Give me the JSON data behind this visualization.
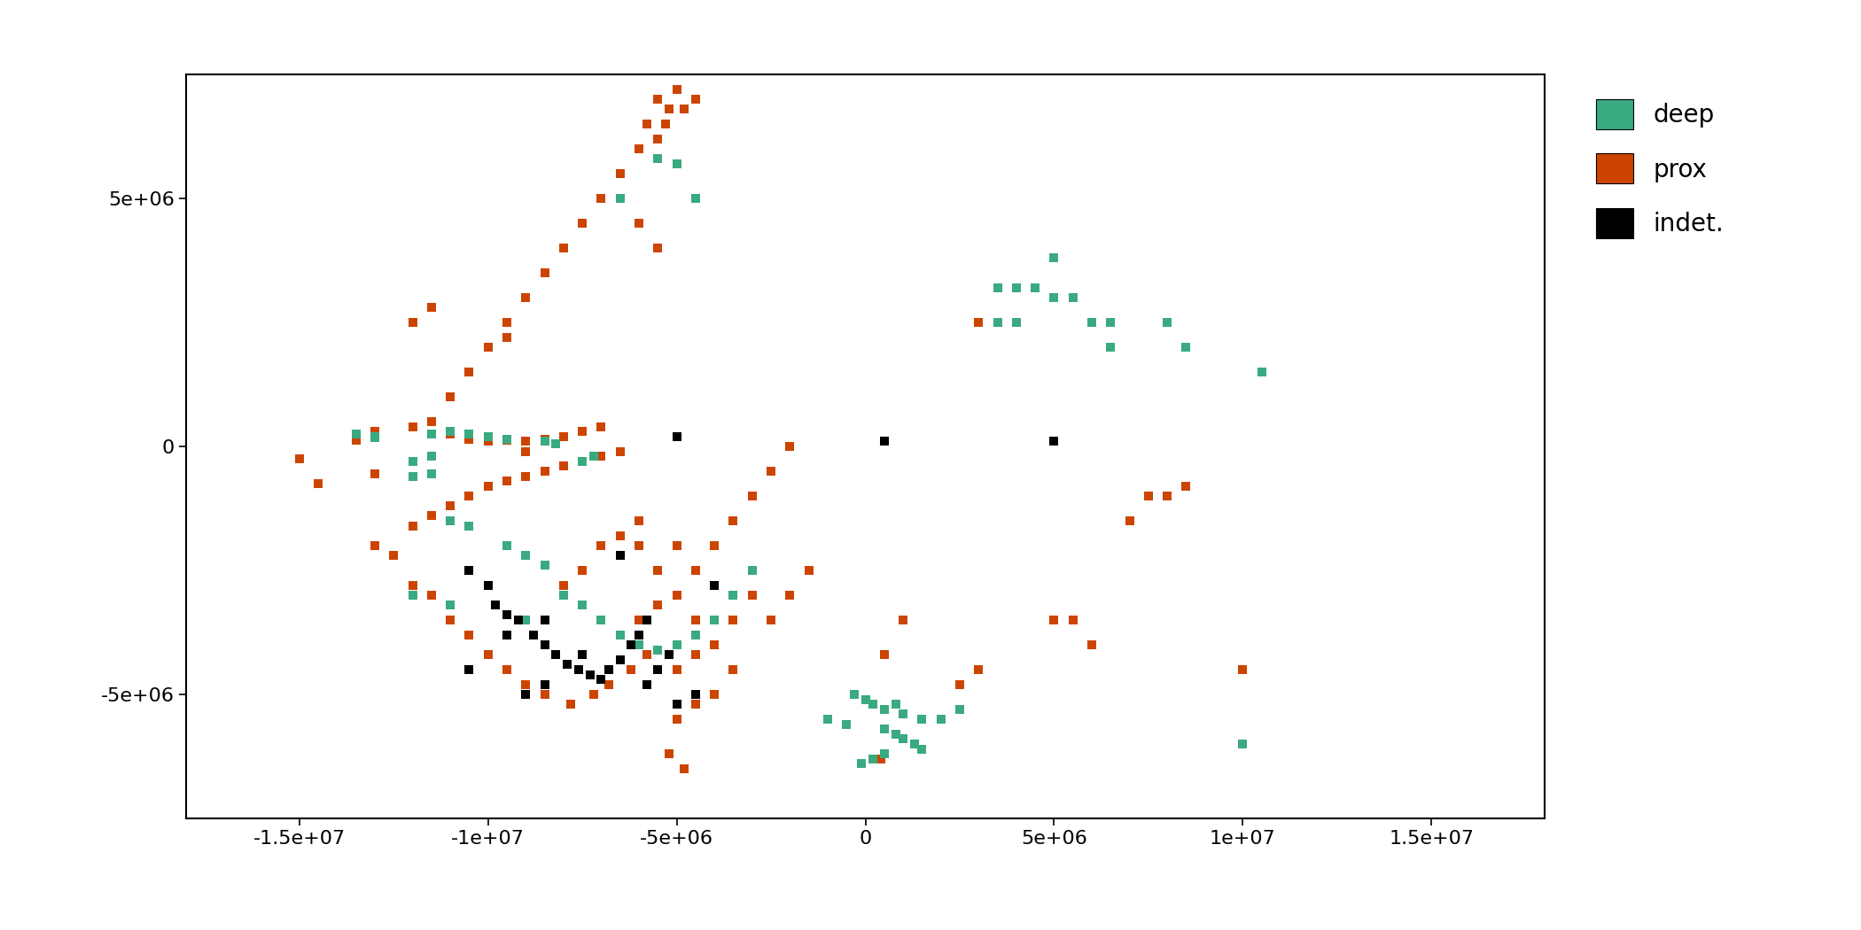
{
  "deep_color": "#3aaa80",
  "prox_color": "#cc4500",
  "indet_color": "#000000",
  "xlim": [
    -18000000.0,
    18000000.0
  ],
  "ylim": [
    -7500000.0,
    7500000.0
  ],
  "xticks": [
    -15000000.0,
    -10000000.0,
    -5000000.0,
    0,
    5000000.0,
    10000000.0,
    15000000.0
  ],
  "yticks": [
    -5000000.0,
    0,
    5000000.0
  ],
  "xlabels": [
    "-1.5e+07",
    "-1e+07",
    "-5e+06",
    "0",
    "5e+06",
    "1e+07",
    "1.5e+07"
  ],
  "ylabels": [
    "-5e+06",
    "0",
    "5e+06"
  ],
  "marker_size": 55,
  "marker": "s",
  "legend_labels": [
    "deep",
    "prox",
    "indet."
  ],
  "legend_colors": [
    "#3aaa80",
    "#cc4500",
    "#000000"
  ],
  "background": "#ffffff",
  "deep_points": [
    [
      -13500000.0,
      250000.0
    ],
    [
      -13000000.0,
      200000.0
    ],
    [
      -11500000.0,
      250000.0
    ],
    [
      -11000000.0,
      300000.0
    ],
    [
      -10500000.0,
      250000.0
    ],
    [
      -10000000.0,
      200000.0
    ],
    [
      -9500000.0,
      150000.0
    ],
    [
      -8500000.0,
      100000.0
    ],
    [
      -8200000.0,
      50000.0
    ],
    [
      -11500000.0,
      -200000.0
    ],
    [
      -12000000.0,
      -300000.0
    ],
    [
      -7200000.0,
      -200000.0
    ],
    [
      -7500000.0,
      -300000.0
    ],
    [
      -11000000.0,
      -1500000.0
    ],
    [
      -10500000.0,
      -1600000.0
    ],
    [
      -9500000.0,
      -2000000.0
    ],
    [
      -9000000.0,
      -2200000.0
    ],
    [
      -8500000.0,
      -2400000.0
    ],
    [
      -8000000.0,
      -3000000.0
    ],
    [
      -7500000.0,
      -3200000.0
    ],
    [
      -7000000.0,
      -3500000.0
    ],
    [
      -6500000.0,
      -3800000.0
    ],
    [
      -6000000.0,
      -4000000.0
    ],
    [
      -5500000.0,
      -4100000.0
    ],
    [
      -5000000.0,
      -4000000.0
    ],
    [
      -4500000.0,
      -3800000.0
    ],
    [
      -4000000.0,
      -3500000.0
    ],
    [
      -3500000.0,
      -3000000.0
    ],
    [
      -3000000.0,
      -2500000.0
    ],
    [
      -9000000.0,
      -3500000.0
    ],
    [
      -9500000.0,
      -3800000.0
    ],
    [
      -12000000.0,
      -3000000.0
    ],
    [
      -11000000.0,
      -3200000.0
    ],
    [
      -6500000.0,
      5000000.0
    ],
    [
      -5500000.0,
      5800000.0
    ],
    [
      -5000000.0,
      5700000.0
    ],
    [
      -4500000.0,
      5000000.0
    ],
    [
      3500000.0,
      3200000.0
    ],
    [
      4000000.0,
      3200000.0
    ],
    [
      4500000.0,
      3200000.0
    ],
    [
      5000000.0,
      3000000.0
    ],
    [
      5500000.0,
      3000000.0
    ],
    [
      6000000.0,
      2500000.0
    ],
    [
      6500000.0,
      2500000.0
    ],
    [
      8000000.0,
      2500000.0
    ],
    [
      10500000.0,
      1500000.0
    ],
    [
      200000.0,
      -5200000.0
    ],
    [
      500000.0,
      -5300000.0
    ],
    [
      800000.0,
      -5200000.0
    ],
    [
      1000000.0,
      -5400000.0
    ],
    [
      1500000.0,
      -5500000.0
    ],
    [
      2000000.0,
      -5500000.0
    ],
    [
      2500000.0,
      -5300000.0
    ],
    [
      -500000.0,
      -5600000.0
    ],
    [
      -1000000.0,
      -5500000.0
    ],
    [
      500000.0,
      -5700000.0
    ],
    [
      800000.0,
      -5800000.0
    ],
    [
      1000000.0,
      -5900000.0
    ],
    [
      1300000.0,
      -6000000.0
    ],
    [
      1500000.0,
      -6100000.0
    ],
    [
      0,
      -5100000.0
    ],
    [
      -300000.0,
      -5000000.0
    ],
    [
      500000.0,
      -6200000.0
    ],
    [
      200000.0,
      -6300000.0
    ],
    [
      -100000.0,
      -6400000.0
    ],
    [
      10000000.0,
      -6000000.0
    ],
    [
      -11500000.0,
      -550000.0
    ],
    [
      -12000000.0,
      -600000.0
    ],
    [
      -13000000.0,
      180000.0
    ],
    [
      5000000.0,
      3800000.0
    ],
    [
      4000000.0,
      2500000.0
    ],
    [
      3500000.0,
      2500000.0
    ],
    [
      8500000.0,
      2000000.0
    ],
    [
      6500000.0,
      2000000.0
    ]
  ],
  "prox_points": [
    [
      -5500000.0,
      7000000.0
    ],
    [
      -5000000.0,
      7200000.0
    ],
    [
      -4500000.0,
      7000000.0
    ],
    [
      -4800000.0,
      6800000.0
    ],
    [
      -5200000.0,
      6800000.0
    ],
    [
      -5800000.0,
      6500000.0
    ],
    [
      -5300000.0,
      6500000.0
    ],
    [
      -6000000.0,
      6000000.0
    ],
    [
      -5500000.0,
      6200000.0
    ],
    [
      -6500000.0,
      5500000.0
    ],
    [
      -7000000.0,
      5000000.0
    ],
    [
      -7500000.0,
      4500000.0
    ],
    [
      -8000000.0,
      4000000.0
    ],
    [
      -8500000.0,
      3500000.0
    ],
    [
      -9000000.0,
      3000000.0
    ],
    [
      -9500000.0,
      2500000.0
    ],
    [
      -10000000.0,
      2000000.0
    ],
    [
      -10500000.0,
      1500000.0
    ],
    [
      -11000000.0,
      1000000.0
    ],
    [
      -11500000.0,
      500000.0
    ],
    [
      -12000000.0,
      400000.0
    ],
    [
      -13000000.0,
      300000.0
    ],
    [
      -10500000.0,
      150000.0
    ],
    [
      -10000000.0,
      100000.0
    ],
    [
      -7000000.0,
      400000.0
    ],
    [
      -7500000.0,
      300000.0
    ],
    [
      -8000000.0,
      200000.0
    ],
    [
      -9000000.0,
      100000.0
    ],
    [
      -8500000.0,
      150000.0
    ],
    [
      -6500000.0,
      -100000.0
    ],
    [
      -7000000.0,
      -200000.0
    ],
    [
      -7500000.0,
      -300000.0
    ],
    [
      -8000000.0,
      -400000.0
    ],
    [
      -8500000.0,
      -500000.0
    ],
    [
      -9000000.0,
      -600000.0
    ],
    [
      -9500000.0,
      -700000.0
    ],
    [
      -10000000.0,
      -800000.0
    ],
    [
      -10500000.0,
      -1000000.0
    ],
    [
      -11000000.0,
      -1200000.0
    ],
    [
      -11500000.0,
      -1400000.0
    ],
    [
      -12000000.0,
      -1600000.0
    ],
    [
      -13000000.0,
      -2000000.0
    ],
    [
      -6000000.0,
      -1500000.0
    ],
    [
      -6500000.0,
      -1800000.0
    ],
    [
      -7000000.0,
      -2000000.0
    ],
    [
      -7500000.0,
      -2500000.0
    ],
    [
      -8000000.0,
      -2800000.0
    ],
    [
      -5500000.0,
      -3200000.0
    ],
    [
      -6000000.0,
      -3500000.0
    ],
    [
      -5000000.0,
      -3000000.0
    ],
    [
      -4500000.0,
      -2500000.0
    ],
    [
      -4000000.0,
      -2000000.0
    ],
    [
      -3500000.0,
      -1500000.0
    ],
    [
      -3000000.0,
      -1000000.0
    ],
    [
      -2500000.0,
      -500000.0
    ],
    [
      -2000000.0,
      0
    ],
    [
      -5800000.0,
      -4200000.0
    ],
    [
      -6200000.0,
      -4500000.0
    ],
    [
      -6800000.0,
      -4800000.0
    ],
    [
      -7200000.0,
      -5000000.0
    ],
    [
      -7800000.0,
      -5200000.0
    ],
    [
      -8500000.0,
      -5000000.0
    ],
    [
      -9000000.0,
      -4800000.0
    ],
    [
      -9500000.0,
      -4500000.0
    ],
    [
      -10000000.0,
      -4200000.0
    ],
    [
      -10500000.0,
      -3800000.0
    ],
    [
      -11000000.0,
      -3500000.0
    ],
    [
      -11500000.0,
      -3000000.0
    ],
    [
      -12000000.0,
      -2800000.0
    ],
    [
      -5000000.0,
      -4500000.0
    ],
    [
      -4500000.0,
      -4200000.0
    ],
    [
      -4000000.0,
      -4000000.0
    ],
    [
      -3500000.0,
      -3500000.0
    ],
    [
      -3000000.0,
      -3000000.0
    ],
    [
      -2500000.0,
      -3500000.0
    ],
    [
      -2000000.0,
      -3000000.0
    ],
    [
      -1500000.0,
      -2500000.0
    ],
    [
      -5200000.0,
      -6200000.0
    ],
    [
      -4800000.0,
      -6500000.0
    ],
    [
      -13000000.0,
      -550000.0
    ],
    [
      -11500000.0,
      2800000.0
    ],
    [
      -12000000.0,
      2500000.0
    ],
    [
      2500000.0,
      -4800000.0
    ],
    [
      3000000.0,
      -4500000.0
    ],
    [
      5000000.0,
      -3500000.0
    ],
    [
      5500000.0,
      -3500000.0
    ],
    [
      6000000.0,
      -4000000.0
    ],
    [
      3000000.0,
      2500000.0
    ],
    [
      7000000.0,
      -1500000.0
    ],
    [
      7500000.0,
      -1000000.0
    ],
    [
      8000000.0,
      -1000000.0
    ],
    [
      8500000.0,
      -800000.0
    ],
    [
      -15000000.0,
      -250000.0
    ],
    [
      -14500000.0,
      -750000.0
    ],
    [
      400000.0,
      -6300000.0
    ],
    [
      -9500000.0,
      2200000.0
    ],
    [
      -11000000.0,
      250000.0
    ],
    [
      -12500000.0,
      -2200000.0
    ],
    [
      -6000000.0,
      -2000000.0
    ],
    [
      -5500000.0,
      -2500000.0
    ],
    [
      -5000000.0,
      -5500000.0
    ],
    [
      -4500000.0,
      -5200000.0
    ],
    [
      -4000000.0,
      -5000000.0
    ],
    [
      -3500000.0,
      -4500000.0
    ],
    [
      -5000000.0,
      -2000000.0
    ],
    [
      -4500000.0,
      -3500000.0
    ],
    [
      -9500000.0,
      120000.0
    ],
    [
      -9000000.0,
      -100000.0
    ],
    [
      1000000.0,
      -3500000.0
    ],
    [
      500000.0,
      -4200000.0
    ],
    [
      10000000.0,
      -4500000.0
    ],
    [
      -13500000.0,
      120000.0
    ],
    [
      -6000000.0,
      4500000.0
    ],
    [
      -5500000.0,
      4000000.0
    ]
  ],
  "indet_points": [
    [
      -9800000.0,
      -3200000.0
    ],
    [
      -9500000.0,
      -3400000.0
    ],
    [
      -9200000.0,
      -3500000.0
    ],
    [
      -8800000.0,
      -3800000.0
    ],
    [
      -8500000.0,
      -4000000.0
    ],
    [
      -8200000.0,
      -4200000.0
    ],
    [
      -7900000.0,
      -4400000.0
    ],
    [
      -7600000.0,
      -4500000.0
    ],
    [
      -7300000.0,
      -4600000.0
    ],
    [
      -7000000.0,
      -4700000.0
    ],
    [
      -6800000.0,
      -4500000.0
    ],
    [
      -6500000.0,
      -4300000.0
    ],
    [
      -6200000.0,
      -4000000.0
    ],
    [
      -8500000.0,
      -4800000.0
    ],
    [
      -9000000.0,
      -5000000.0
    ],
    [
      -10500000.0,
      -2500000.0
    ],
    [
      -10000000.0,
      -2800000.0
    ],
    [
      -5500000.0,
      -4500000.0
    ],
    [
      -5800000.0,
      -4800000.0
    ],
    [
      -5000000.0,
      -5200000.0
    ],
    [
      -4500000.0,
      -5000000.0
    ],
    [
      -4000000.0,
      -2800000.0
    ],
    [
      -6500000.0,
      -2200000.0
    ],
    [
      -9500000.0,
      -3800000.0
    ],
    [
      -8500000.0,
      -3500000.0
    ],
    [
      -7500000.0,
      -4200000.0
    ],
    [
      -6000000.0,
      -3800000.0
    ],
    [
      -5800000.0,
      -3500000.0
    ],
    [
      -5200000.0,
      -4200000.0
    ],
    [
      -10500000.0,
      -4500000.0
    ],
    [
      -5000000.0,
      200000.0
    ],
    [
      500000.0,
      100000.0
    ],
    [
      5000000.0,
      100000.0
    ]
  ]
}
